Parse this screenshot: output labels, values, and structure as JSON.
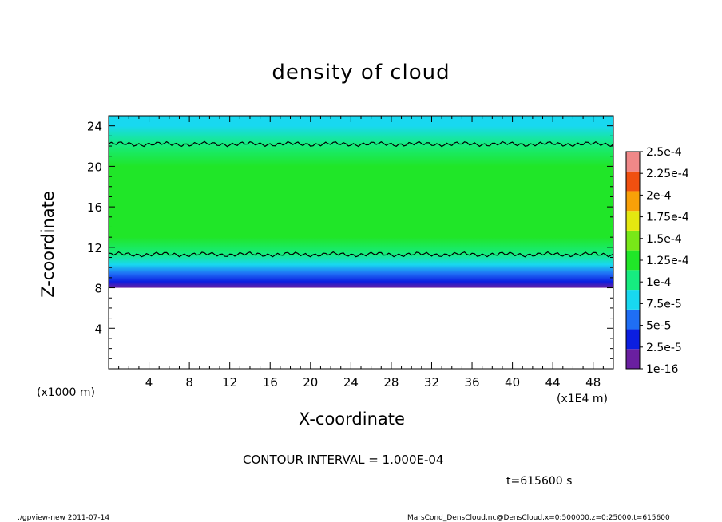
{
  "chart_data": {
    "type": "heatmap",
    "title": "density of cloud",
    "xlabel": "X-coordinate",
    "ylabel": "Z-coordinate",
    "x_unit_label": "(x1E4 m)",
    "z_unit_label": "(x1000 m)",
    "xlim": [
      0,
      50
    ],
    "ylim": [
      0,
      25
    ],
    "x_ticks": [
      "4",
      "8",
      "12",
      "16",
      "20",
      "24",
      "28",
      "32",
      "36",
      "40",
      "44",
      "48"
    ],
    "y_ticks": [
      "4",
      "8",
      "12",
      "16",
      "20",
      "24"
    ],
    "colorbar": {
      "labels": [
        "1e-16",
        "2.5e-5",
        "5e-5",
        "7.5e-5",
        "1e-4",
        "1.25e-4",
        "1.5e-4",
        "1.75e-4",
        "2e-4",
        "2.25e-4",
        "2.5e-4"
      ],
      "colors": [
        "#6a1fa0",
        "#0b1ee0",
        "#1f6ef5",
        "#18d8f0",
        "#16ec80",
        "#20e628",
        "#78e818",
        "#e4e810",
        "#f8a008",
        "#f05010",
        "#f08888"
      ]
    },
    "field_profile": [
      {
        "z": 8.0,
        "value": 0.0
      },
      {
        "z": 8.6,
        "value": 3e-05
      },
      {
        "z": 9.4,
        "value": 6e-05
      },
      {
        "z": 10.3,
        "value": 8e-05
      },
      {
        "z": 11.3,
        "value": 0.0001
      },
      {
        "z": 13.0,
        "value": 0.000118
      },
      {
        "z": 17.0,
        "value": 0.000125
      },
      {
        "z": 20.0,
        "value": 0.000118
      },
      {
        "z": 22.2,
        "value": 0.0001
      },
      {
        "z": 24.0,
        "value": 8e-05
      },
      {
        "z": 25.0,
        "value": 7e-05
      }
    ],
    "contour_levels": [
      0.0001
    ],
    "contour_lines": [
      {
        "level": 0.0001,
        "z": 22.2
      },
      {
        "level": 0.0001,
        "z": 11.3
      }
    ]
  },
  "contour_interval_text": "CONTOUR INTERVAL = 1.000E-04",
  "time_text": "t=615600 s",
  "footer_left": "./gpview-new  2011-07-14",
  "footer_right": "MarsCond_DensCloud.nc@DensCloud,x=0:500000,z=0:25000,t=615600"
}
